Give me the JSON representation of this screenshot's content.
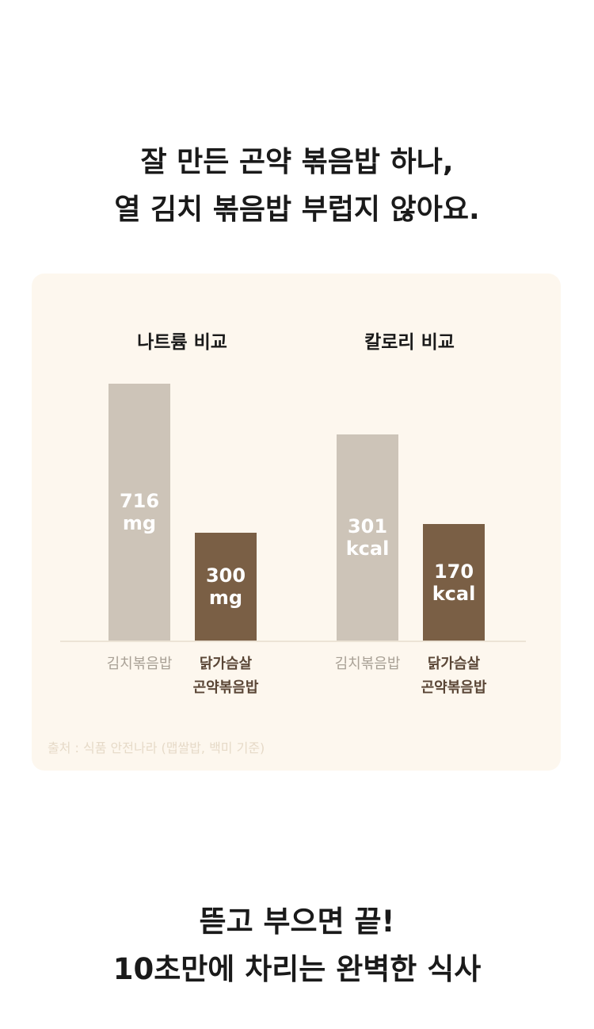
{
  "header": {
    "title": "잘 만든 곤약 볶음밥 하나,\n열 김치 볶음밥 부럽지 않아요."
  },
  "chart_data": [
    {
      "type": "bar",
      "title": "나트륨 비교",
      "categories": [
        "김치볶음밥",
        "닭가슴살\n곤약볶음밥"
      ],
      "values": [
        716,
        300
      ],
      "value_labels": [
        "716\nmg",
        "300\nmg"
      ],
      "colors": [
        "#cdc4b8",
        "#7a5f45"
      ]
    },
    {
      "type": "bar",
      "title": "칼로리 비교",
      "categories": [
        "김치볶음밥",
        "닭가슴살\n곤약볶음밥"
      ],
      "values": [
        301,
        170
      ],
      "value_labels": [
        "301\nkcal",
        "170\nkcal"
      ],
      "colors": [
        "#cdc4b8",
        "#7a5f45"
      ]
    }
  ],
  "source": "출처 : 식품 안전나라 (맵쌀밥, 백미 기준)",
  "footer": {
    "title": "뜯고 부으면 끝!\n10초만에 차리는 완벽한 식사"
  }
}
